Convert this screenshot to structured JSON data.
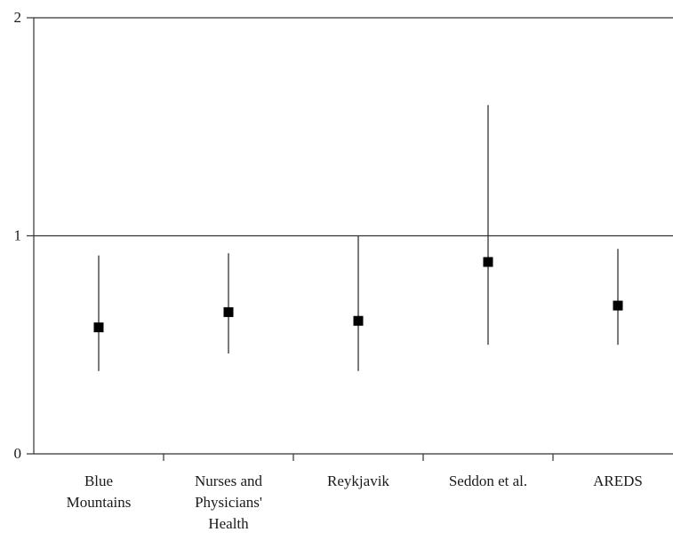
{
  "chart_data": {
    "type": "scatter",
    "title": "",
    "xlabel": "",
    "ylabel": "",
    "ylim": [
      0,
      2
    ],
    "yticks": [
      0,
      1,
      2
    ],
    "reference_line": 1,
    "grid": false,
    "categories": [
      [
        "Blue",
        "Mountains"
      ],
      [
        "Nurses and",
        "Physicians'",
        "Health"
      ],
      [
        "Reykjavik"
      ],
      [
        "Seddon et al."
      ],
      [
        "AREDS"
      ]
    ],
    "values": [
      0.58,
      0.65,
      0.61,
      0.88,
      0.68
    ],
    "lower": [
      0.38,
      0.46,
      0.38,
      0.5,
      0.5
    ],
    "upper": [
      0.91,
      0.92,
      1.0,
      1.6,
      0.94
    ],
    "colors": {
      "marker": "#000000",
      "whisker": "#333333",
      "axis": "#333333"
    }
  }
}
